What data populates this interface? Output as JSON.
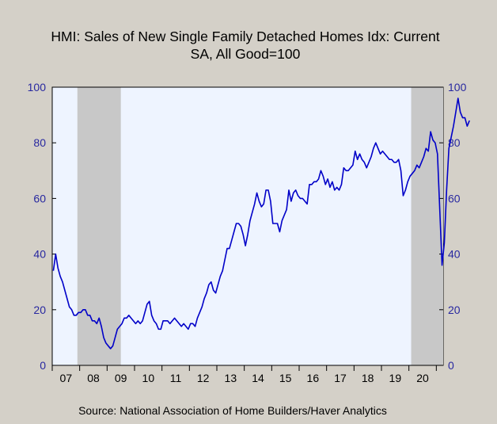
{
  "chart_data": {
    "type": "line",
    "title": "HMI: Sales of New Single Family Detached Homes Idx: Current",
    "subtitle": "SA, All Good=100",
    "source": "Source:  National Association of Home Builders/Haver Analytics",
    "ylim": [
      0,
      100
    ],
    "yticks": [
      0,
      20,
      40,
      60,
      80,
      100
    ],
    "x_start": "2007-01",
    "x_end": "2021-03",
    "xtick_labels": [
      "07",
      "08",
      "09",
      "10",
      "11",
      "12",
      "13",
      "14",
      "15",
      "16",
      "17",
      "18",
      "19",
      "20"
    ],
    "grid": false,
    "recessions": [
      {
        "start": "2007-12",
        "end": "2009-06"
      },
      {
        "start": "2020-02",
        "end": "2021-03"
      }
    ],
    "series": [
      {
        "color": "#0000c8",
        "start": "2007-01",
        "values": [
          34,
          40,
          35,
          32,
          30,
          27,
          24,
          21,
          20,
          18,
          18,
          19,
          19,
          20,
          20,
          18,
          18,
          16,
          16,
          15,
          17,
          14,
          10,
          8,
          7,
          6,
          7,
          10,
          13,
          14,
          15,
          17,
          17,
          18,
          17,
          16,
          15,
          16,
          15,
          16,
          19,
          22,
          23,
          18,
          16,
          15,
          13,
          13,
          16,
          16,
          16,
          15,
          16,
          17,
          16,
          15,
          14,
          15,
          14,
          13,
          15,
          15,
          14,
          17,
          19,
          21,
          24,
          26,
          29,
          30,
          27,
          26,
          29,
          32,
          34,
          38,
          42,
          42,
          45,
          48,
          51,
          51,
          50,
          47,
          43,
          47,
          52,
          55,
          58,
          62,
          59,
          57,
          58,
          63,
          63,
          59,
          51,
          51,
          51,
          48,
          52,
          54,
          56,
          63,
          59,
          62,
          63,
          61,
          60,
          60,
          59,
          58,
          65,
          65,
          66,
          66,
          67,
          70,
          68,
          65,
          67,
          64,
          66,
          63,
          64,
          63,
          65,
          71,
          70,
          70,
          71,
          72,
          77,
          74,
          76,
          74,
          73,
          71,
          73,
          75,
          78,
          80,
          78,
          76,
          77,
          76,
          75,
          74,
          74,
          73,
          73,
          74,
          70,
          61,
          63,
          66,
          68,
          69,
          70,
          72,
          71,
          73,
          75,
          78,
          77,
          84,
          81,
          80,
          76,
          56,
          36,
          44,
          63,
          78,
          82,
          86,
          91,
          96,
          91,
          89,
          89,
          86,
          88
        ]
      }
    ]
  }
}
